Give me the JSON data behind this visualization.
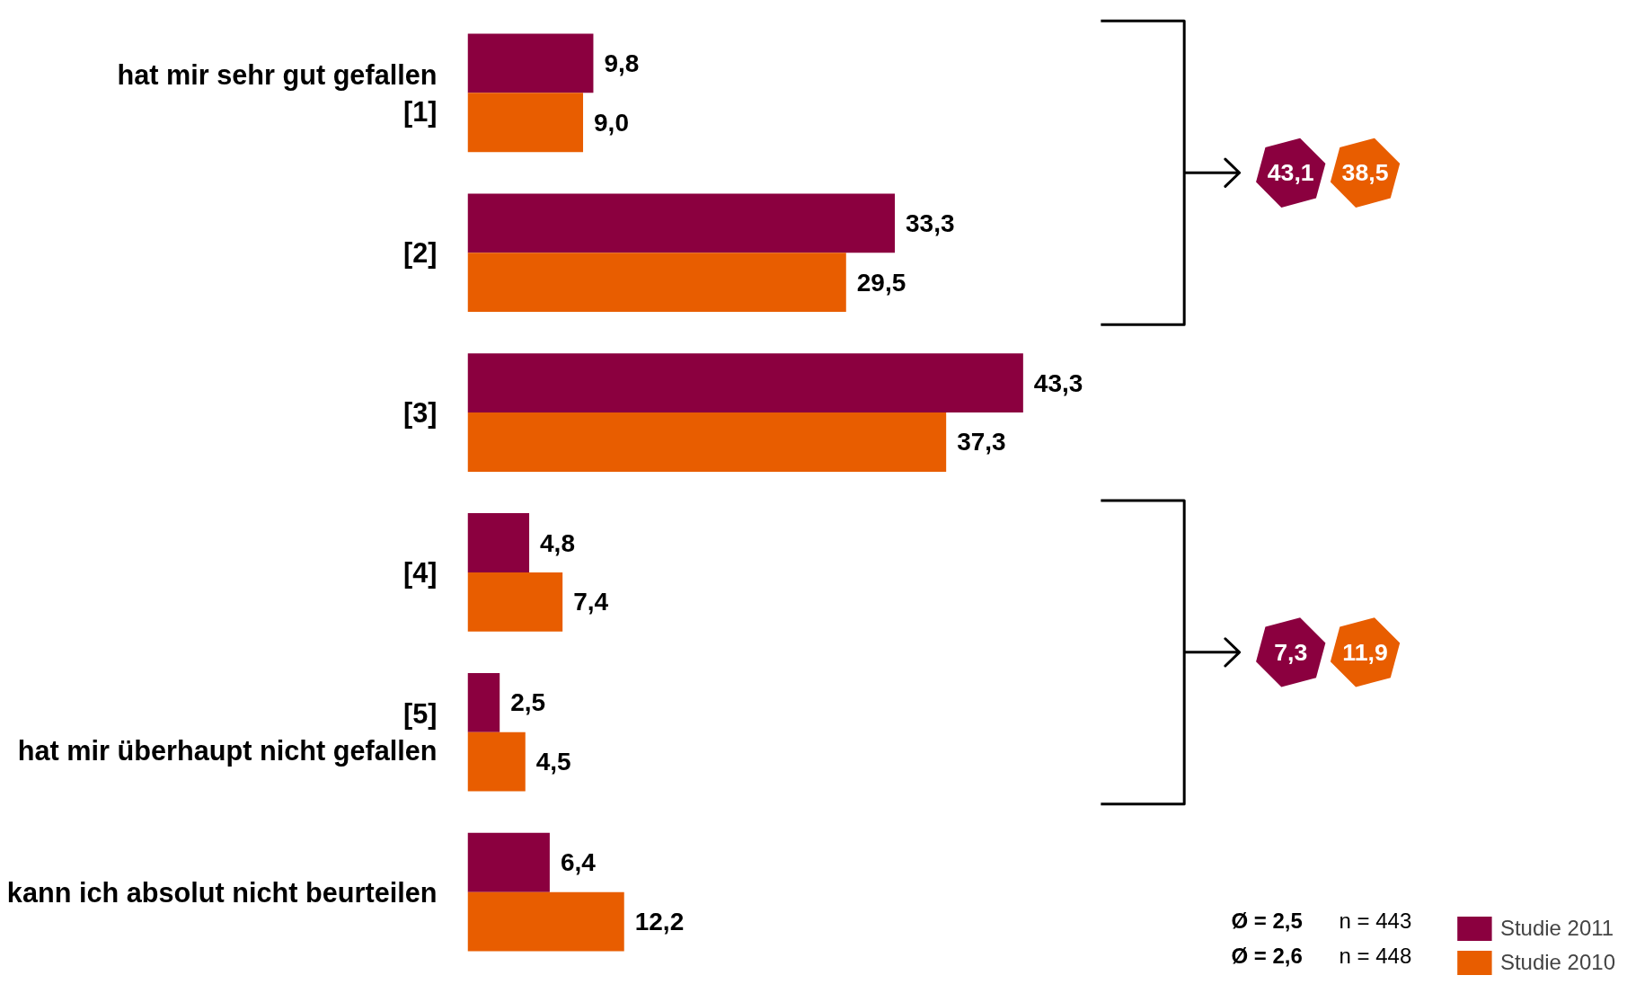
{
  "chart_data": {
    "type": "bar",
    "orientation": "horizontal",
    "categories": [
      "hat mir sehr gut gefallen\n[1]",
      "[2]",
      "[3]",
      "[4]",
      "[5]\nhat mir überhaupt nicht gefallen",
      "kann ich absolut nicht beurteilen"
    ],
    "series": [
      {
        "name": "Studie 2011",
        "color": "#8b003f",
        "values": [
          9.8,
          33.3,
          43.3,
          4.8,
          2.5,
          6.4
        ],
        "value_labels": [
          "9,8",
          "33,3",
          "43,3",
          "4,8",
          "2,5",
          "6,4"
        ]
      },
      {
        "name": "Studie 2010",
        "color": "#e85d00",
        "values": [
          9.0,
          29.5,
          37.3,
          7.4,
          4.5,
          12.2
        ],
        "value_labels": [
          "9,0",
          "29,5",
          "37,3",
          "7,4",
          "4,5",
          "12,2"
        ]
      }
    ],
    "annotations": [
      "43,1",
      "38,5",
      "7,3",
      "11,9",
      "Ø = 2,5",
      "n = 443",
      "Ø = 2,6",
      "n = 448"
    ],
    "legend": "bottom right",
    "grid": false
  }
}
